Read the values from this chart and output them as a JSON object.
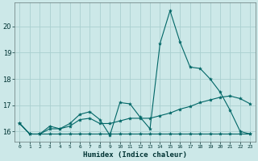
{
  "xlabel": "Humidex (Indice chaleur)",
  "x": [
    0,
    1,
    2,
    3,
    4,
    5,
    6,
    7,
    8,
    9,
    10,
    11,
    12,
    13,
    14,
    15,
    16,
    17,
    18,
    19,
    20,
    21,
    22,
    23
  ],
  "line_min": [
    16.3,
    15.9,
    15.9,
    15.9,
    15.9,
    15.9,
    15.9,
    15.9,
    15.9,
    15.9,
    15.9,
    15.9,
    15.9,
    15.9,
    15.9,
    15.9,
    15.9,
    15.9,
    15.9,
    15.9,
    15.9,
    15.9,
    15.9,
    15.9
  ],
  "line_mean": [
    16.3,
    15.9,
    15.9,
    16.1,
    16.1,
    16.2,
    16.45,
    16.5,
    16.3,
    16.3,
    16.4,
    16.5,
    16.5,
    16.5,
    16.6,
    16.7,
    16.85,
    16.95,
    17.1,
    17.2,
    17.3,
    17.35,
    17.25,
    17.05
  ],
  "line_max": [
    16.3,
    15.9,
    15.9,
    16.2,
    16.1,
    16.3,
    16.65,
    16.75,
    16.45,
    15.85,
    17.1,
    17.05,
    16.55,
    16.1,
    19.35,
    20.6,
    19.4,
    18.45,
    18.4,
    18.0,
    17.5,
    16.8,
    16.0,
    15.9
  ],
  "bg_color": "#cce8e8",
  "grid_color": "#aad0d0",
  "line_color": "#006666",
  "ylim": [
    15.6,
    20.9
  ],
  "yticks": [
    16,
    17,
    18,
    19,
    20
  ],
  "xticks": [
    0,
    1,
    2,
    3,
    4,
    5,
    6,
    7,
    8,
    9,
    10,
    11,
    12,
    13,
    14,
    15,
    16,
    17,
    18,
    19,
    20,
    21,
    22,
    23
  ],
  "marker": "*",
  "markersize": 3.0,
  "linewidth": 0.8
}
